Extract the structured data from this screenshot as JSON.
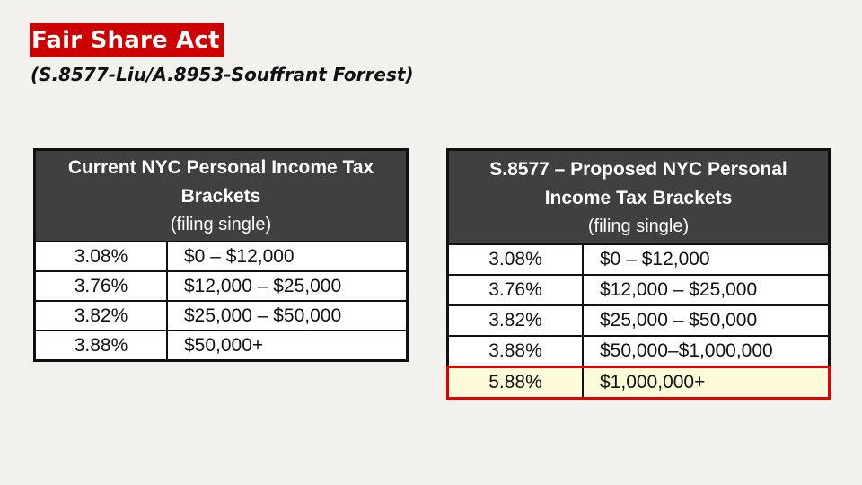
{
  "slide": {
    "title": "Fair Share Act",
    "subtitle": "(S.8577-Liu/A.8953-Souffrant Forrest)",
    "colors": {
      "title_bg": "#cc0000",
      "header_bg": "#404040",
      "highlight_bg": "#fdfbd9",
      "highlight_border": "#e00000",
      "slide_bg": "#f2f1ee"
    }
  },
  "current_table": {
    "header_line1": "Current NYC Personal Income Tax",
    "header_line2": "Brackets",
    "header_sub": "(filing single)",
    "rows": [
      {
        "rate": "3.08%",
        "range": "$0 – $12,000"
      },
      {
        "rate": "3.76%",
        "range": "$12,000 – $25,000"
      },
      {
        "rate": "3.82%",
        "range": "$25,000 – $50,000"
      },
      {
        "rate": "3.88%",
        "range": "$50,000+"
      }
    ]
  },
  "proposed_table": {
    "header_line1": "S.8577 – Proposed NYC Personal",
    "header_line2": "Income Tax Brackets",
    "header_sub": "(filing single)",
    "rows": [
      {
        "rate": "3.08%",
        "range": "$0 – $12,000"
      },
      {
        "rate": "3.76%",
        "range": "$12,000 – $25,000"
      },
      {
        "rate": "3.82%",
        "range": "$25,000 – $50,000"
      },
      {
        "rate": "3.88%",
        "range": "$50,000–$1,000,000"
      },
      {
        "rate": "5.88%",
        "range": "$1,000,000+",
        "highlighted": true
      }
    ]
  }
}
